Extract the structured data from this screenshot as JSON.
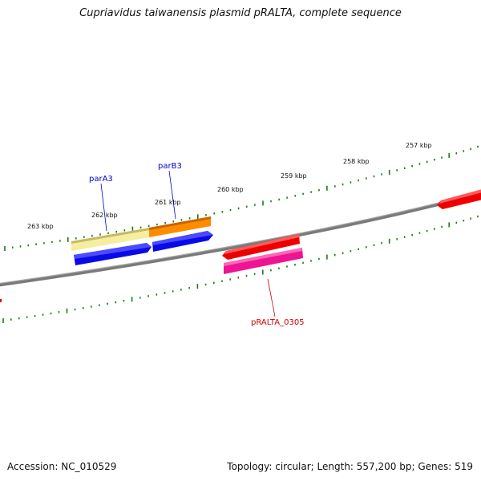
{
  "title": "Cupriavidus taiwanensis plasmid pRALTA, complete sequence",
  "footer": {
    "accession": "Accession: NC_010529",
    "summary": "Topology: circular; Length: 557,200 bp; Genes: 519"
  },
  "kbp_labels": [
    "263 kbp",
    "262 kbp",
    "261 kbp",
    "260 kbp",
    "259 kbp",
    "258 kbp",
    "257 kbp"
  ],
  "gene_labels": {
    "parA3": "parA3",
    "parB3": "parB3",
    "pRALTA_0305": "pRALTA_0305"
  },
  "colors": {
    "backbone": "#7a7a7a",
    "tick": "#1a7a1a",
    "blue_label": "#0000cc",
    "red_label": "#cc0000",
    "gene_blue": "#0a0ae6",
    "gene_red": "#ee0000",
    "gene_pink": "#ee1493",
    "gene_orange": "#ff8c00",
    "gene_cream": "#f5eea0"
  }
}
